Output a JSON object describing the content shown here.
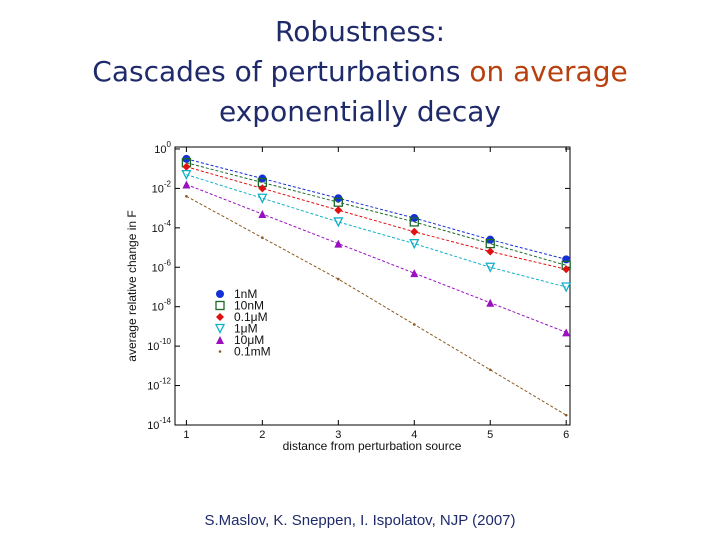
{
  "slide": {
    "title_line1": "Robustness:",
    "title_line2_a": "Cascades of perturbations ",
    "title_line2_b": "on average",
    "title_line3": "exponentially decay",
    "citation": "S.Maslov, K. Sneppen, I. Ispolatov, NJP (2007)"
  },
  "colors": {
    "title": "#1f2a6b",
    "accent": "#b8400e"
  },
  "chart_data": {
    "type": "line",
    "xlabel": "distance from perturbation source",
    "ylabel": "average relative change in F",
    "x": [
      1,
      2,
      3,
      4,
      5,
      6
    ],
    "xlim": [
      0.85,
      6.05
    ],
    "ylim_log10": [
      -14,
      0.1
    ],
    "y_scale": "log",
    "y_tick_exponents": [
      0,
      -2,
      -4,
      -6,
      -8,
      -10,
      -12,
      -14
    ],
    "grid": false,
    "legend_position": "left-lower",
    "series": [
      {
        "name": "1nM",
        "color": "#1530d8",
        "marker": "circle",
        "log10_y": [
          -0.5,
          -1.5,
          -2.5,
          -3.5,
          -4.6,
          -5.6
        ]
      },
      {
        "name": "10nM",
        "color": "#1a6a28",
        "marker": "square",
        "log10_y": [
          -0.7,
          -1.7,
          -2.7,
          -3.7,
          -4.8,
          -5.9
        ]
      },
      {
        "name": "0.1μM",
        "color": "#e01010",
        "marker": "diamond",
        "log10_y": [
          -0.9,
          -2.0,
          -3.1,
          -4.2,
          -5.2,
          -6.1
        ]
      },
      {
        "name": "1μM",
        "color": "#10b0c8",
        "marker": "triangle-down",
        "log10_y": [
          -1.3,
          -2.5,
          -3.7,
          -4.8,
          -6.0,
          -7.0
        ]
      },
      {
        "name": "10μM",
        "color": "#9a10c0",
        "marker": "triangle-up",
        "log10_y": [
          -1.8,
          -3.3,
          -4.8,
          -6.3,
          -7.8,
          -9.3
        ]
      },
      {
        "name": "0.1mM",
        "color": "#8a5a20",
        "marker": "dot",
        "log10_y": [
          -2.4,
          -4.5,
          -6.6,
          -8.9,
          -11.2,
          -13.5
        ]
      }
    ]
  }
}
